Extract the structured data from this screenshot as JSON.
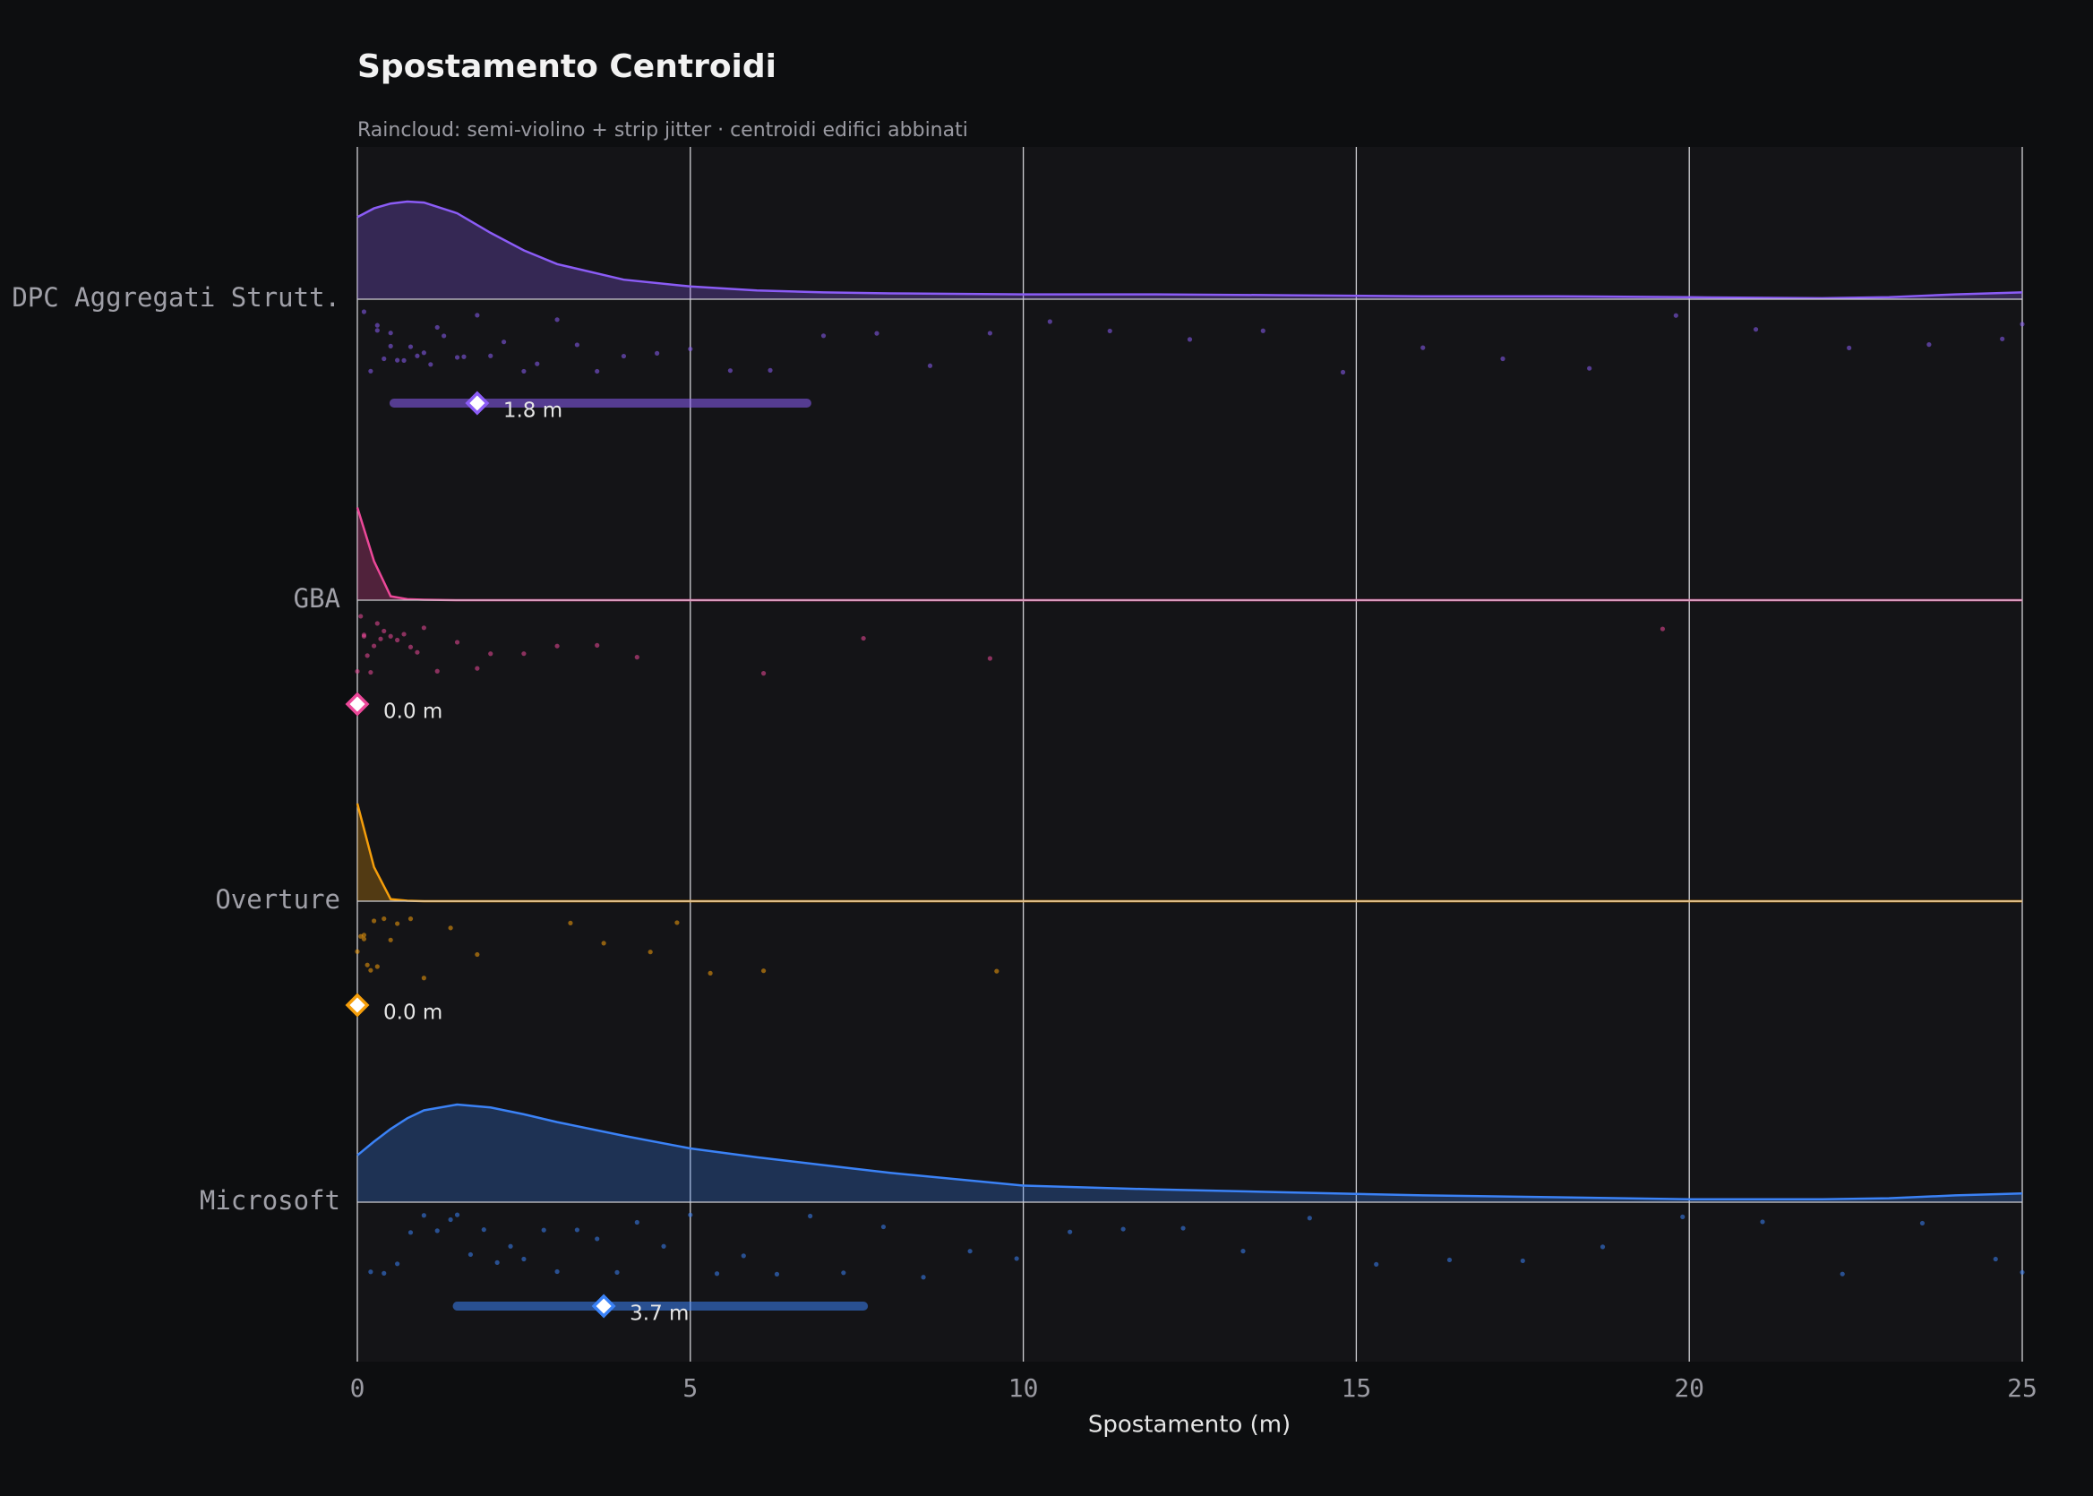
{
  "chart_data": {
    "type": "raincloud",
    "title": "Spostamento Centroidi",
    "subtitle": "Raincloud: semi-violino + strip jitter · centroidi edifici abbinati",
    "x_label": "Spostamento (m)",
    "xlim": [
      0,
      25
    ],
    "xticks": [
      0,
      5,
      10,
      15,
      20,
      25
    ],
    "grid": true,
    "density_x": [
      0,
      0.25,
      0.5,
      0.75,
      1,
      1.5,
      2,
      2.5,
      3,
      4,
      5,
      6,
      7,
      8,
      10,
      12,
      14,
      16,
      18,
      20,
      22,
      23,
      24,
      25
    ],
    "series": [
      {
        "name": "DPC Aggregati Strutt.",
        "color": "#8b5cf6",
        "density": [
          0.84,
          0.93,
          0.98,
          1.0,
          0.99,
          0.88,
          0.68,
          0.5,
          0.36,
          0.2,
          0.13,
          0.09,
          0.07,
          0.06,
          0.05,
          0.05,
          0.04,
          0.03,
          0.03,
          0.02,
          0.01,
          0.02,
          0.05,
          0.07
        ],
        "points": [
          0.1,
          0.2,
          0.3,
          0.3,
          0.4,
          0.5,
          0.5,
          0.6,
          0.7,
          0.8,
          0.9,
          1.0,
          1.1,
          1.2,
          1.3,
          1.5,
          1.6,
          1.8,
          2.0,
          2.2,
          2.5,
          2.7,
          3.0,
          3.3,
          3.6,
          4.0,
          4.5,
          5.0,
          5.6,
          6.2,
          7.0,
          7.8,
          8.6,
          9.5,
          10.4,
          11.3,
          12.5,
          13.6,
          14.8,
          16.0,
          17.2,
          18.5,
          19.8,
          21.0,
          22.4,
          23.6,
          24.7,
          25.0
        ],
        "median": 1.8,
        "median_label": "1.8 m",
        "q1": 0.55,
        "q3": 6.75
      },
      {
        "name": "GBA",
        "color": "#ec4899",
        "density": [
          0.95,
          0.4,
          0.04,
          0.01,
          0.005,
          0,
          0,
          0,
          0,
          0,
          0,
          0,
          0,
          0,
          0,
          0,
          0,
          0,
          0,
          0,
          0,
          0,
          0,
          0
        ],
        "points": [
          0.0,
          0.05,
          0.1,
          0.1,
          0.15,
          0.2,
          0.25,
          0.3,
          0.35,
          0.4,
          0.5,
          0.6,
          0.7,
          0.8,
          0.9,
          1.0,
          1.2,
          1.5,
          1.8,
          2.0,
          2.5,
          3.0,
          3.6,
          4.2,
          6.1,
          7.6,
          9.5,
          19.6
        ],
        "median": 0.0,
        "median_label": "0.0 m",
        "q1": 0.0,
        "q3": 0.1
      },
      {
        "name": "Overture",
        "color": "#f59e0b",
        "density": [
          1.0,
          0.35,
          0.02,
          0.005,
          0,
          0,
          0,
          0,
          0,
          0,
          0,
          0,
          0,
          0,
          0,
          0,
          0,
          0,
          0,
          0,
          0,
          0,
          0,
          0
        ],
        "points": [
          0.0,
          0.05,
          0.1,
          0.1,
          0.15,
          0.2,
          0.25,
          0.3,
          0.4,
          0.5,
          0.6,
          0.8,
          1.0,
          1.4,
          1.8,
          3.2,
          3.7,
          4.4,
          4.8,
          5.3,
          6.1,
          9.6
        ],
        "median": 0.0,
        "median_label": "0.0 m",
        "q1": 0.0,
        "q3": 0.1
      },
      {
        "name": "Microsoft",
        "color": "#3b82f6",
        "density": [
          0.48,
          0.62,
          0.75,
          0.86,
          0.94,
          1.0,
          0.97,
          0.9,
          0.82,
          0.68,
          0.55,
          0.46,
          0.38,
          0.3,
          0.17,
          0.13,
          0.1,
          0.07,
          0.05,
          0.03,
          0.03,
          0.04,
          0.07,
          0.09
        ],
        "points": [
          0.2,
          0.4,
          0.6,
          0.8,
          1.0,
          1.2,
          1.4,
          1.5,
          1.7,
          1.9,
          2.1,
          2.3,
          2.5,
          2.8,
          3.0,
          3.3,
          3.6,
          3.9,
          4.2,
          4.6,
          5.0,
          5.4,
          5.8,
          6.3,
          6.8,
          7.3,
          7.9,
          8.5,
          9.2,
          9.9,
          10.7,
          11.5,
          12.4,
          13.3,
          14.3,
          15.3,
          16.4,
          17.5,
          18.7,
          19.9,
          21.1,
          22.3,
          23.5,
          24.6,
          25.0
        ],
        "median": 3.7,
        "median_label": "3.7 m",
        "q1": 1.5,
        "q3": 7.6
      }
    ]
  }
}
